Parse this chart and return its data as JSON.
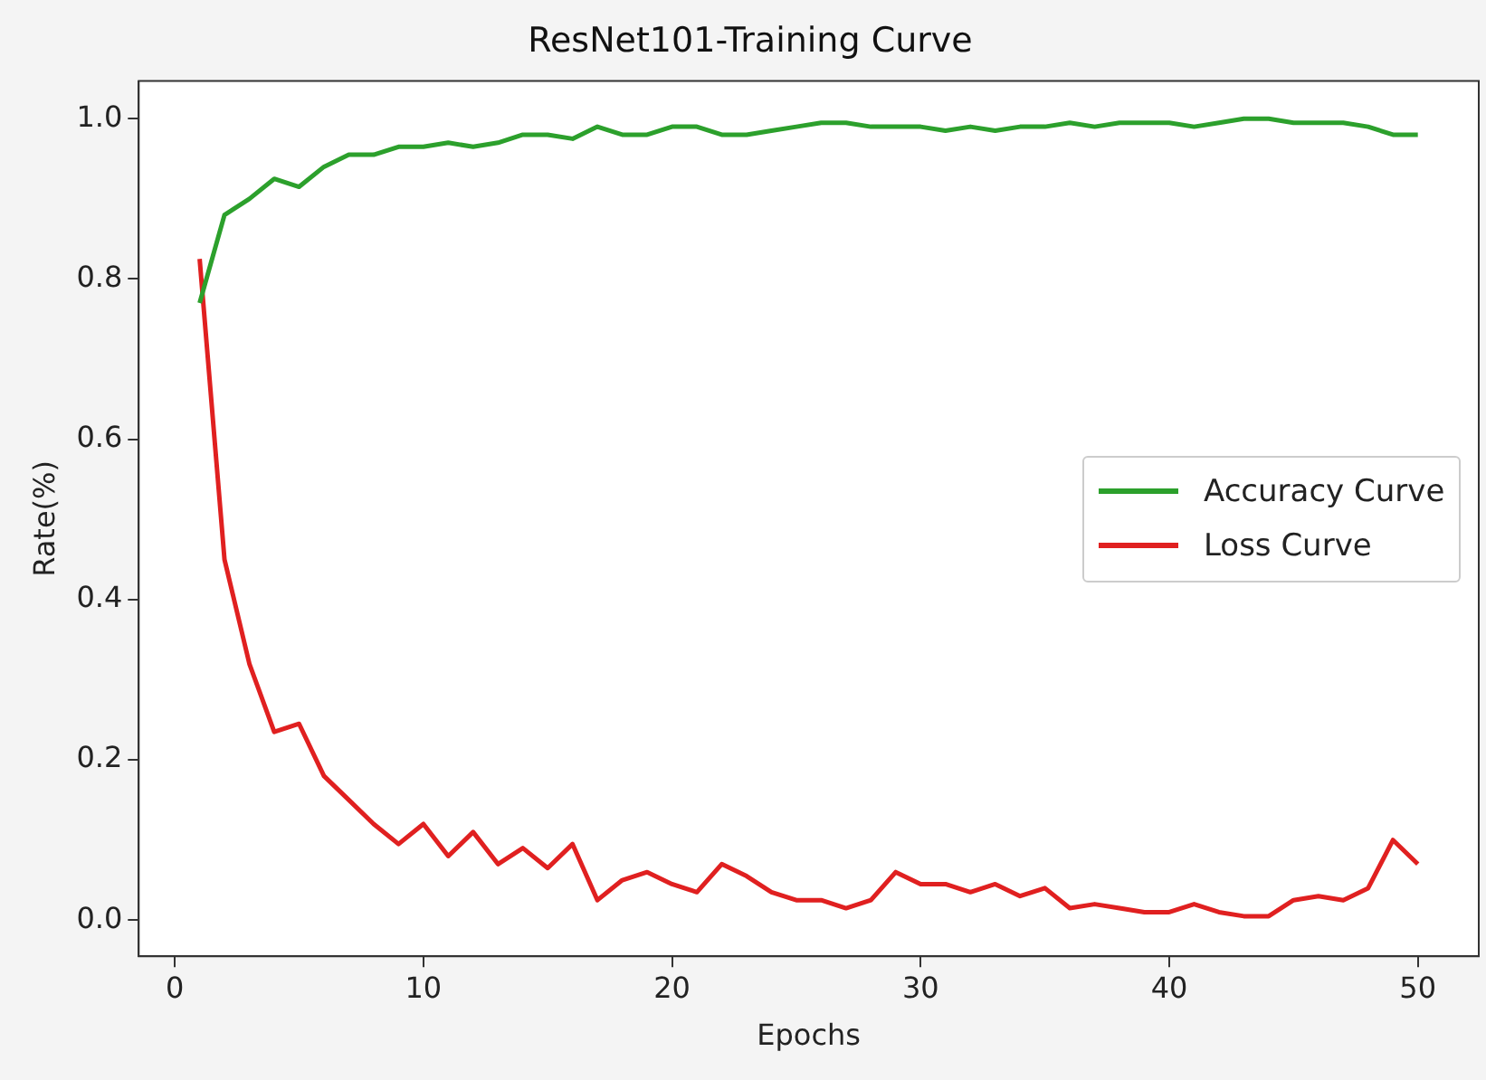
{
  "chart_data": {
    "type": "line",
    "title": "ResNet101-Training Curve",
    "xlabel": "Epochs",
    "ylabel": "Rate(%)",
    "x": [
      1,
      2,
      3,
      4,
      5,
      6,
      7,
      8,
      9,
      10,
      11,
      12,
      13,
      14,
      15,
      16,
      17,
      18,
      19,
      20,
      21,
      22,
      23,
      24,
      25,
      26,
      27,
      28,
      29,
      30,
      31,
      32,
      33,
      34,
      35,
      36,
      37,
      38,
      39,
      40,
      41,
      42,
      43,
      44,
      45,
      46,
      47,
      48,
      49,
      50
    ],
    "series": [
      {
        "name": "Accuracy Curve",
        "color": "#2ca02c",
        "values": [
          0.77,
          0.88,
          0.9,
          0.925,
          0.915,
          0.94,
          0.955,
          0.955,
          0.965,
          0.965,
          0.97,
          0.965,
          0.97,
          0.98,
          0.98,
          0.975,
          0.99,
          0.98,
          0.98,
          0.99,
          0.99,
          0.98,
          0.98,
          0.985,
          0.99,
          0.995,
          0.995,
          0.99,
          0.99,
          0.99,
          0.985,
          0.99,
          0.985,
          0.99,
          0.99,
          0.995,
          0.99,
          0.995,
          0.995,
          0.995,
          0.99,
          0.995,
          1.0,
          1.0,
          0.995,
          0.995,
          0.995,
          0.99,
          0.98,
          0.98
        ]
      },
      {
        "name": "Loss Curve",
        "color": "#e02020",
        "values": [
          0.825,
          0.45,
          0.32,
          0.235,
          0.245,
          0.18,
          0.15,
          0.12,
          0.095,
          0.12,
          0.08,
          0.11,
          0.07,
          0.09,
          0.065,
          0.095,
          0.025,
          0.05,
          0.06,
          0.045,
          0.035,
          0.07,
          0.055,
          0.035,
          0.025,
          0.025,
          0.015,
          0.025,
          0.06,
          0.045,
          0.045,
          0.035,
          0.045,
          0.03,
          0.04,
          0.015,
          0.02,
          0.015,
          0.01,
          0.01,
          0.02,
          0.01,
          0.005,
          0.005,
          0.025,
          0.03,
          0.025,
          0.04,
          0.1,
          0.07
        ]
      }
    ],
    "xlim": [
      -1.45,
      52.45
    ],
    "xticks": [
      0,
      10,
      20,
      30,
      40,
      50
    ],
    "ylim": [
      -0.045,
      1.047
    ],
    "yticks": [
      {
        "value": 0,
        "label": "0.0"
      },
      {
        "value": 0.2,
        "label": "0.2"
      },
      {
        "value": 0.4,
        "label": "0.4"
      },
      {
        "value": 0.6,
        "label": "0.6"
      },
      {
        "value": 0.8,
        "label": "0.8"
      },
      {
        "value": 1,
        "label": "1.0"
      }
    ],
    "grid": false,
    "legend": "right",
    "marker": "none",
    "line_style": "solid"
  }
}
